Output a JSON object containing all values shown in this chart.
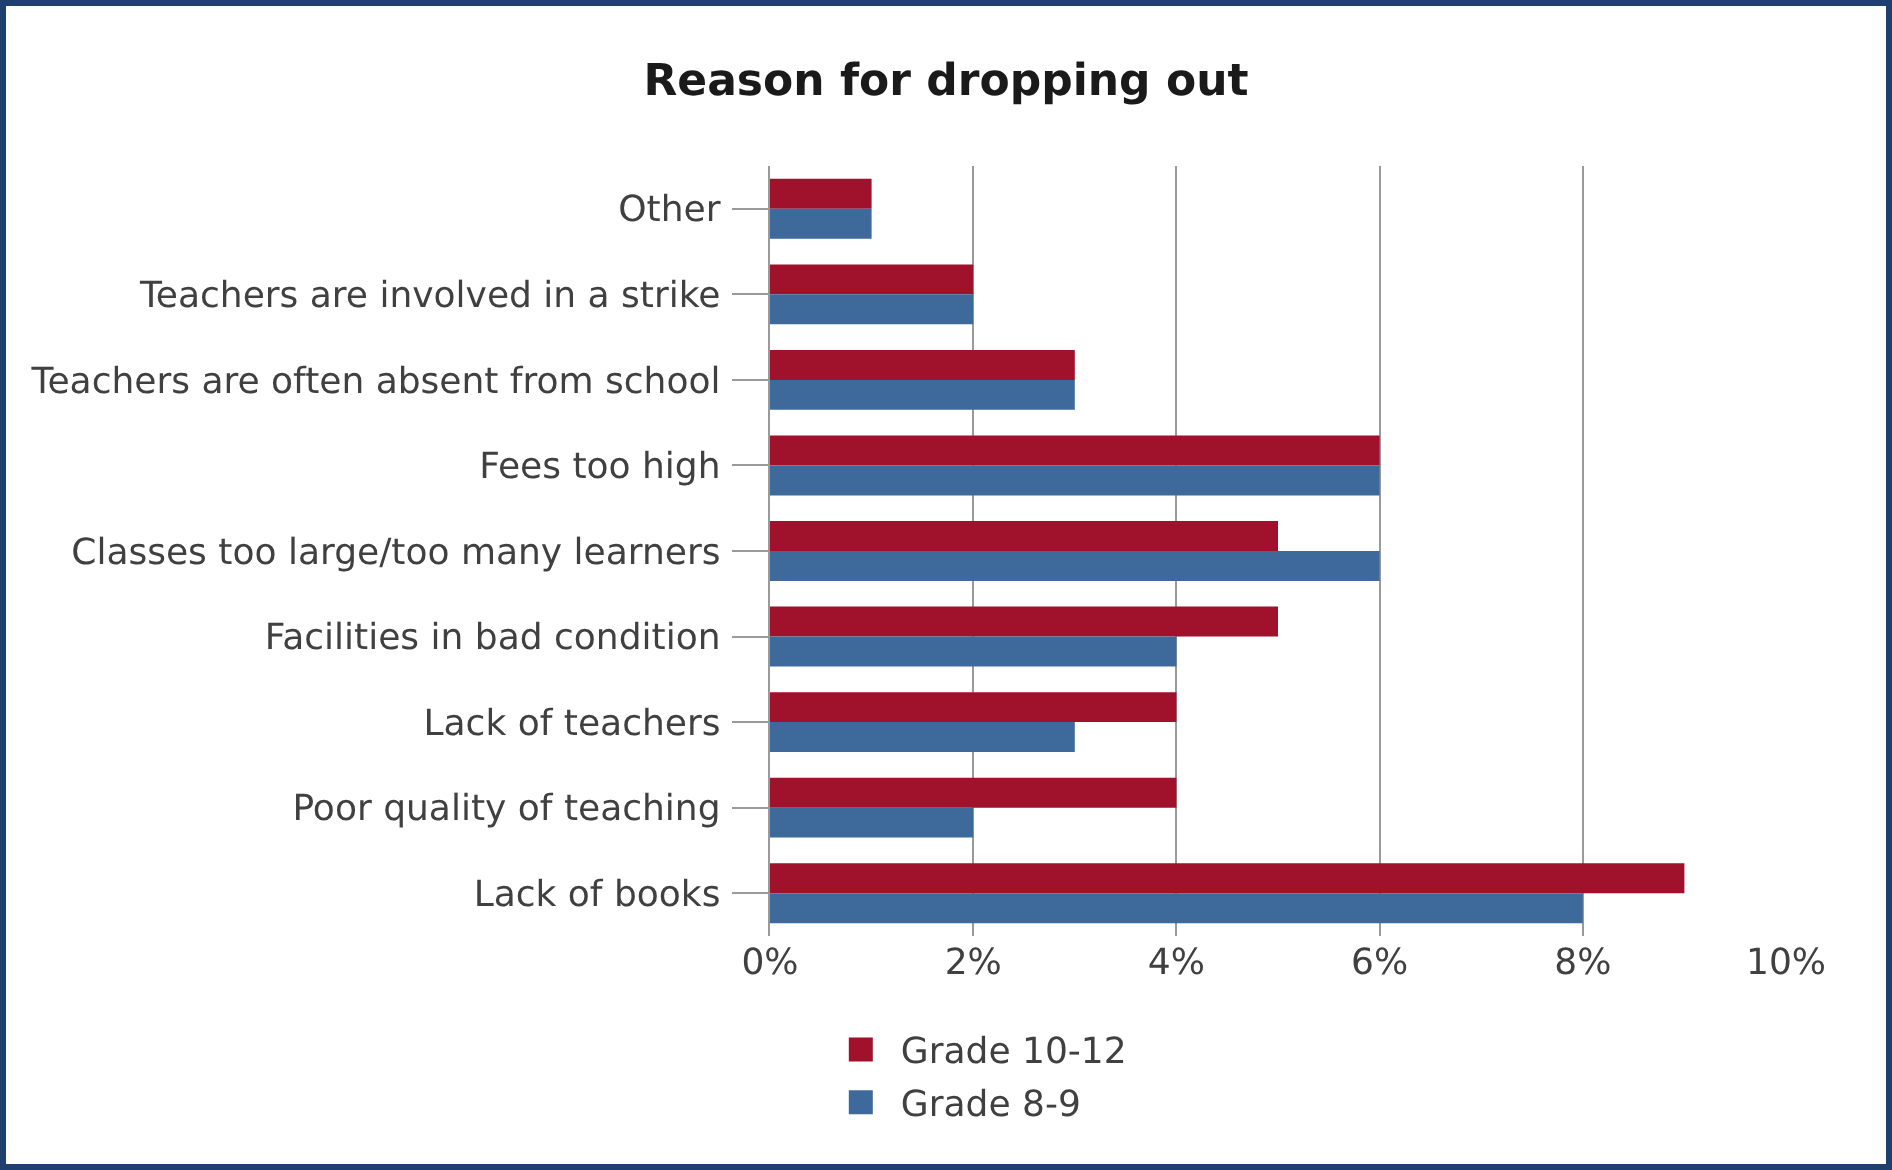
{
  "chart_data": {
    "type": "bar",
    "orientation": "horizontal",
    "title": "Reason for dropping out",
    "categories": [
      "Other",
      "Teachers are involved in a strike",
      "Teachers are often absent from school",
      "Fees too high",
      "Classes too large/too many learners",
      "Facilities in bad condition",
      "Lack of teachers",
      "Poor quality of teaching",
      "Lack of books"
    ],
    "series": [
      {
        "name": "Grade 10-12",
        "color": "#a0112b",
        "values": [
          1,
          2,
          3,
          6,
          5,
          5,
          4,
          4,
          9
        ]
      },
      {
        "name": "Grade 8-9",
        "color": "#3d6a9b",
        "values": [
          1,
          2,
          3,
          6,
          6,
          4,
          3,
          2,
          8
        ]
      }
    ],
    "xlim": [
      0,
      10
    ],
    "xticks": [
      {
        "value": 0,
        "label": "0%"
      },
      {
        "value": 2,
        "label": "2%"
      },
      {
        "value": 4,
        "label": "4%"
      },
      {
        "value": 6,
        "label": "6%"
      },
      {
        "value": 8,
        "label": "8%"
      },
      {
        "value": 10,
        "label": "10%"
      }
    ],
    "grid": "x",
    "legend": "bottom"
  }
}
